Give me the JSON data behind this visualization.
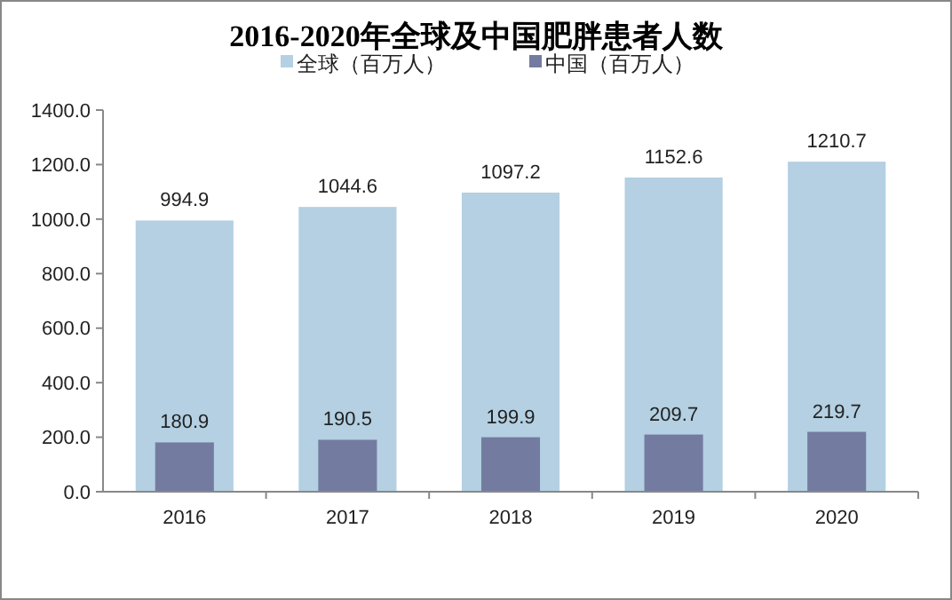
{
  "chart_data": {
    "type": "bar",
    "title": "2016-2020年全球及中国肥胖患者人数",
    "categories": [
      "2016",
      "2017",
      "2018",
      "2019",
      "2020"
    ],
    "series": [
      {
        "name": "全球（百万人）",
        "color": "#b4d0e2",
        "values": [
          994.9,
          1044.6,
          1097.2,
          1152.6,
          1210.7
        ]
      },
      {
        "name": "中国（百万人）",
        "color": "#737ca0",
        "values": [
          180.9,
          190.5,
          199.9,
          209.7,
          219.7
        ]
      }
    ],
    "ylim": [
      0,
      1400
    ],
    "yticks": [
      {
        "value": 0,
        "label": "0.0"
      },
      {
        "value": 200,
        "label": "200.0"
      },
      {
        "value": 400,
        "label": "400.0"
      },
      {
        "value": 600,
        "label": "600.0"
      },
      {
        "value": 800,
        "label": "800.0"
      },
      {
        "value": 1000,
        "label": "1000.0"
      },
      {
        "value": 1200,
        "label": "1200.0"
      },
      {
        "value": 1400,
        "label": "1400.0"
      }
    ],
    "data_labels": true,
    "legend": "top",
    "grid": false
  }
}
